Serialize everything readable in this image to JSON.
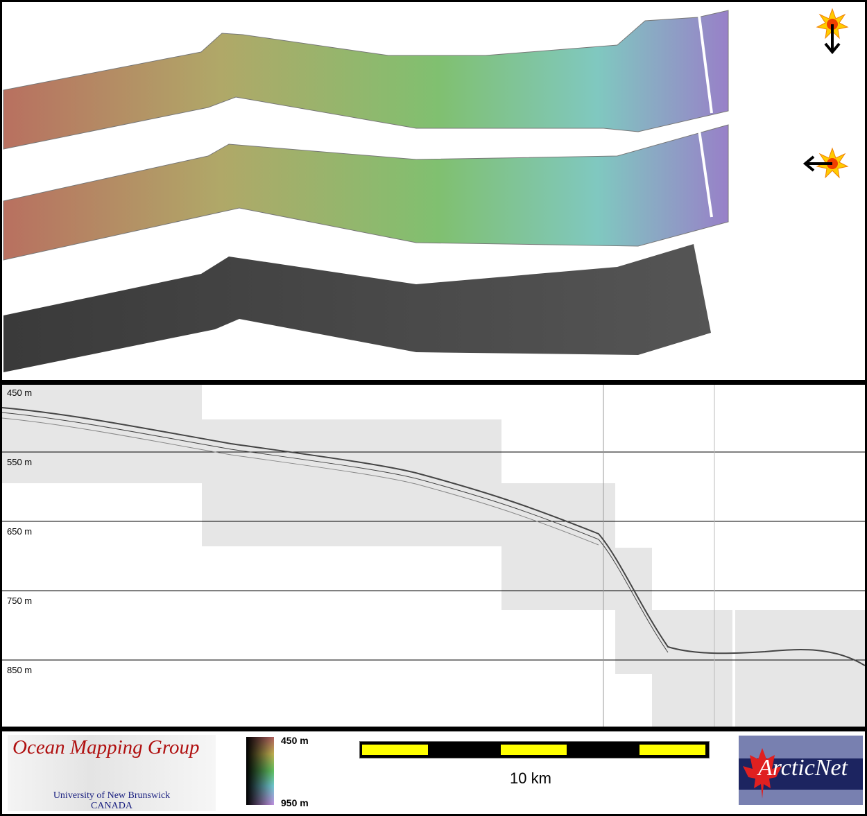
{
  "profile": {
    "depth_labels": [
      "450 m",
      "550 m",
      "650 m",
      "750 m",
      "850 m"
    ]
  },
  "colorbar": {
    "top_label": "450 m",
    "bottom_label": "950 m",
    "colors": [
      "#b06060",
      "#c0b050",
      "#60c060",
      "#70c8d0",
      "#c090e0"
    ]
  },
  "scalebar": {
    "label": "10 km",
    "colors": {
      "bar": "#000000",
      "segment": "#ffff00"
    }
  },
  "logos": {
    "omg": {
      "title": "Ocean Mapping Group",
      "line1": "University of New Brunswick",
      "line2": "CANADA"
    },
    "arcticnet": {
      "text": "ArcticNet"
    }
  },
  "sun_indicators": [
    {
      "icon": "sun-icon",
      "direction": "down"
    },
    {
      "icon": "sun-icon",
      "direction": "left"
    }
  ]
}
